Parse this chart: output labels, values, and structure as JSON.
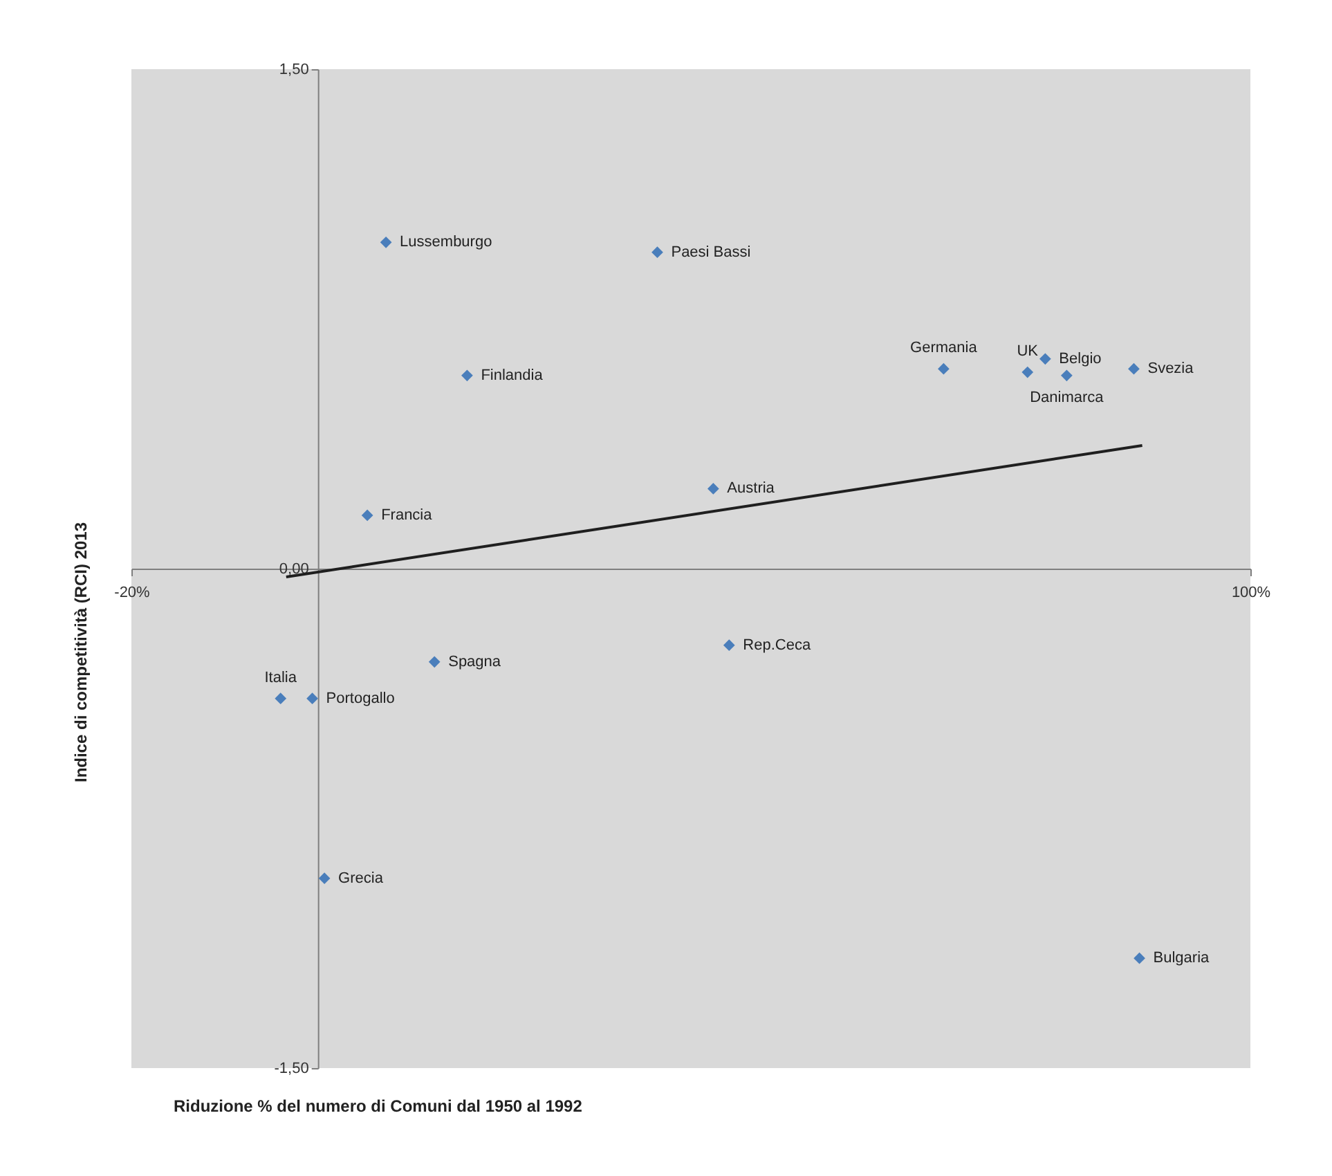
{
  "chart_data": {
    "type": "scatter",
    "xlabel": "Riduzione % del numero di Comuni dal 1950 al 1992",
    "ylabel": "Indice di competitività (RCI) 2013",
    "xlim": [
      -20,
      100
    ],
    "xticks": [
      {
        "value": -20,
        "label": "-20%"
      },
      {
        "value": 100,
        "label": "100%"
      }
    ],
    "ylim": [
      -1.5,
      1.5
    ],
    "yticks": [
      {
        "value": -1.5,
        "label": "-1,50"
      },
      {
        "value": 0,
        "label": "0,00"
      },
      {
        "value": 1.5,
        "label": "1,50"
      }
    ],
    "grid": false,
    "series": [
      {
        "color": "#4a7ebb",
        "marker": "diamond",
        "x": [
          7.3,
          36.4,
          16.0,
          67.1,
          76.1,
          78.0,
          80.3,
          87.5,
          5.3,
          42.4,
          12.5,
          44.1,
          -4.0,
          -0.6,
          0.7,
          88.1
        ],
        "values": [
          0.98,
          0.95,
          0.58,
          0.6,
          0.59,
          0.63,
          0.58,
          0.6,
          0.16,
          0.24,
          -0.28,
          -0.23,
          -0.39,
          -0.39,
          -0.93,
          -1.17
        ]
      },
      {
        "type": "line",
        "color": "#1f1f1f",
        "x": [
          -3.4,
          88.4
        ],
        "values": [
          -0.025,
          0.37
        ]
      }
    ],
    "annotations": [
      {
        "text": "Lussemburgo",
        "x": 7.3,
        "y": 0.98
      },
      {
        "text": "Paesi Bassi",
        "x": 36.4,
        "y": 0.95
      },
      {
        "text": "Finlandia",
        "x": 16.0,
        "y": 0.58
      },
      {
        "text": "Germania",
        "x": 67.1,
        "y": 0.6
      },
      {
        "text": "UK",
        "x": 76.1,
        "y": 0.59
      },
      {
        "text": "Belgio",
        "x": 78.0,
        "y": 0.63
      },
      {
        "text": "Danimarca",
        "x": 80.3,
        "y": 0.58
      },
      {
        "text": "Svezia",
        "x": 87.5,
        "y": 0.6
      },
      {
        "text": "Francia",
        "x": 5.3,
        "y": 0.16
      },
      {
        "text": "Austria",
        "x": 42.4,
        "y": 0.24
      },
      {
        "text": "Spagna",
        "x": 12.5,
        "y": -0.28
      },
      {
        "text": "Rep.Ceca",
        "x": 44.1,
        "y": -0.23
      },
      {
        "text": "Italia",
        "x": -4.0,
        "y": -0.39
      },
      {
        "text": "Portogallo",
        "x": -0.6,
        "y": -0.39
      },
      {
        "text": "Grecia",
        "x": 0.7,
        "y": -0.93
      },
      {
        "text": "Bulgaria",
        "x": 88.1,
        "y": -1.17
      }
    ]
  }
}
